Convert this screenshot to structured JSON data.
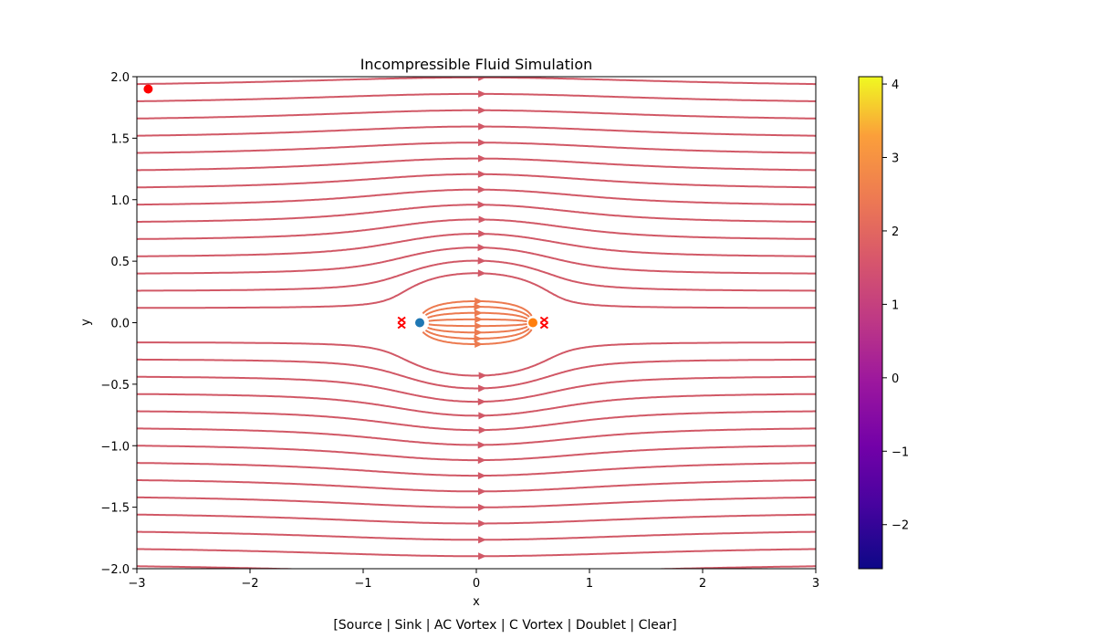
{
  "chart_data": {
    "type": "streamplot",
    "title": "Incompressible Fluid Simulation",
    "xlabel": "x",
    "ylabel": "y",
    "xlim": [
      -3,
      3
    ],
    "ylim": [
      -2,
      2
    ],
    "xticks": [
      "−3",
      "−2",
      "−1",
      "0",
      "1",
      "2",
      "3"
    ],
    "yticks": [
      "−2.0",
      "−1.5",
      "−1.0",
      "−0.5",
      "0.0",
      "0.5",
      "1.0",
      "1.5",
      "2.0"
    ],
    "colorbar": {
      "colormap": "plasma",
      "range": [
        -2.6,
        4.1
      ],
      "ticks": [
        "−2",
        "−1",
        "0",
        "1",
        "2",
        "3",
        "4"
      ]
    },
    "uniform_flow": 1.0,
    "elements": [
      {
        "kind": "source",
        "x": -0.5,
        "y": 0.0,
        "strength": 1.0,
        "color": "#1f77b4"
      },
      {
        "kind": "sink",
        "x": 0.5,
        "y": 0.0,
        "strength": 1.0,
        "color": "#ff7f0e"
      }
    ],
    "stagnation_points": [
      {
        "x": -0.66,
        "y": 0.0
      },
      {
        "x": 0.6,
        "y": 0.0
      }
    ],
    "marker_point": {
      "x": -2.9,
      "y": 1.9,
      "color": "#ff0000"
    },
    "stream_color": "#d15866",
    "inner_stream_color": "#ec7a4f",
    "stagnation_color": "#ff0000"
  },
  "toolbar": {
    "open_bracket": "[",
    "close_bracket": "]",
    "separator": " | ",
    "buttons": [
      "Source",
      "Sink",
      "AC Vortex",
      "C Vortex",
      "Doublet",
      "Clear"
    ]
  }
}
